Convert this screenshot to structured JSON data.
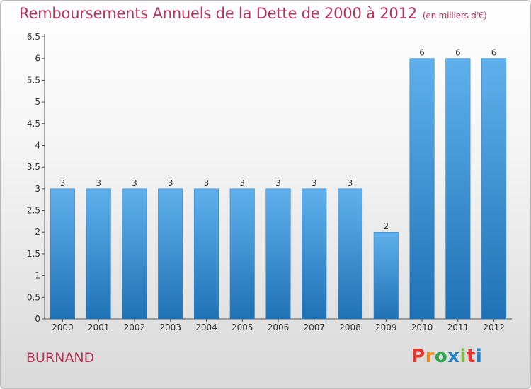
{
  "title": "Remboursements Annuels de la Dette de 2000 à 2012",
  "subtitle": "(en milliers d'€)",
  "commune": "BURNAND",
  "logo": {
    "letters": [
      "P",
      "r",
      "o",
      "x",
      "i",
      "t",
      "i"
    ],
    "colors": [
      "#e8342d",
      "#f28c1e",
      "#2aa84a",
      "#1f7fc4",
      "#7cb840",
      "#e8342d",
      "#1f7fc4"
    ]
  },
  "colors": {
    "bar": "#3a8fd4",
    "title": "#b5325a"
  },
  "chart_data": {
    "type": "bar",
    "categories": [
      "2000",
      "2001",
      "2002",
      "2003",
      "2004",
      "2005",
      "2006",
      "2007",
      "2008",
      "2009",
      "2010",
      "2011",
      "2012"
    ],
    "values": [
      3,
      3,
      3,
      3,
      3,
      3,
      3,
      3,
      3,
      2,
      6,
      6,
      6
    ],
    "yticks": [
      "0",
      "0.5",
      "1",
      "1.5",
      "2",
      "2.5",
      "3",
      "3.5",
      "4",
      "4.5",
      "5",
      "5.5",
      "6",
      "6.5"
    ],
    "ylim": [
      0,
      6.5
    ],
    "grid": false
  }
}
